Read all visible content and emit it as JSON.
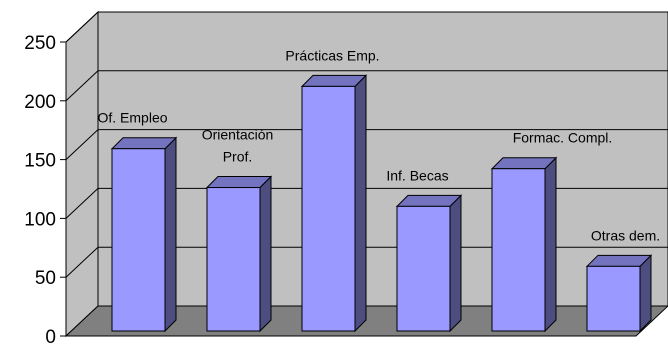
{
  "chart_data": {
    "type": "bar",
    "title": "",
    "xlabel": "",
    "ylabel": "",
    "categories": [
      "Of. Empleo",
      "Orientación Prof.",
      "Prácticas Emp.",
      "Inf. Becas",
      "Formac. Compl.",
      "Otras dem."
    ],
    "label_lines": [
      [
        "Of. Empleo"
      ],
      [
        "Orientación",
        "Prof."
      ],
      [
        "Prácticas Emp."
      ],
      [
        "Inf. Becas"
      ],
      [
        "Formac. Compl."
      ],
      [
        "Otras dem."
      ]
    ],
    "values": [
      155,
      122,
      208,
      106,
      138,
      55
    ],
    "ylim": [
      0,
      250
    ],
    "yticks": [
      0,
      50,
      100,
      150,
      200,
      250
    ],
    "grid": true,
    "legend": "none",
    "three_d": true,
    "colors": {
      "wall": "#c0c0c0",
      "floor": "#808080",
      "bar_front": "#9999ff",
      "bar_side": "#4d4d80",
      "bar_top": "#7373bf",
      "outline": "#000000"
    }
  }
}
